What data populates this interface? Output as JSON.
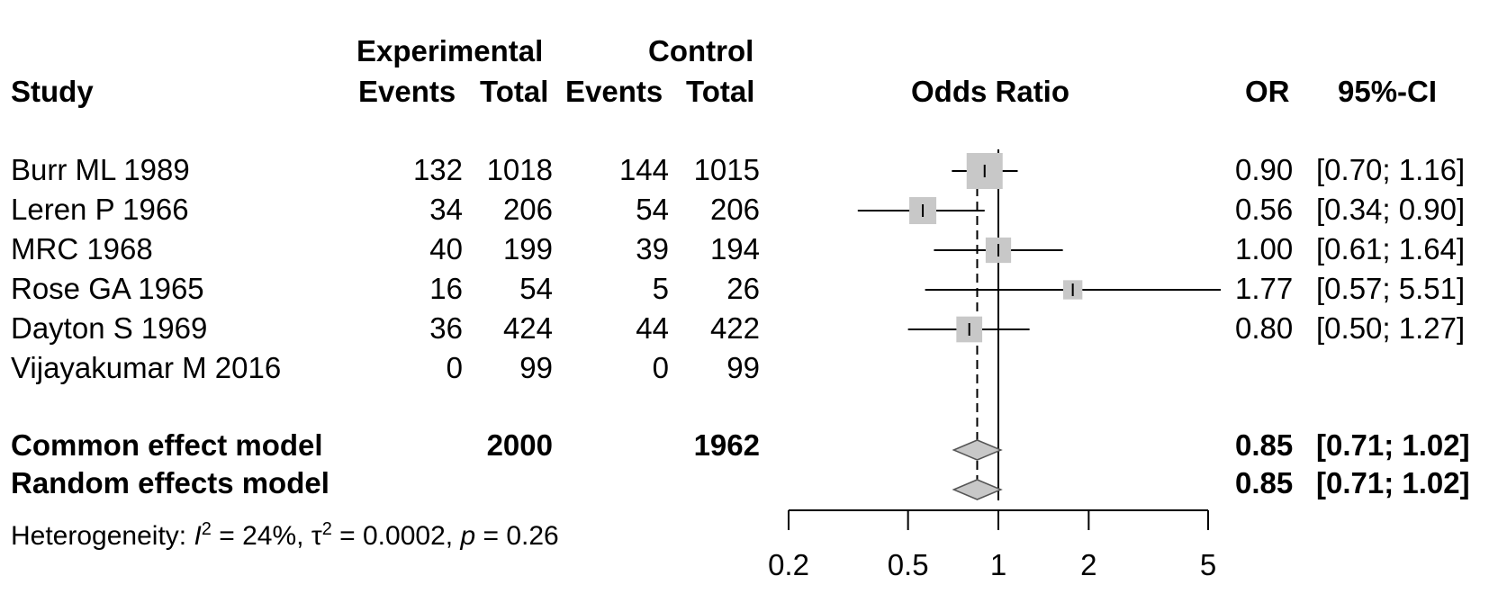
{
  "headers": {
    "study": "Study",
    "experimental": "Experimental",
    "control": "Control",
    "events": "Events",
    "total": "Total",
    "odds_ratio": "Odds Ratio",
    "or": "OR",
    "ci": "95%-CI"
  },
  "studies": [
    {
      "name": "Burr ML 1989",
      "e_events": "132",
      "e_total": "1018",
      "c_events": "144",
      "c_total": "1015",
      "or": "0.90",
      "ci": "[0.70; 1.16]"
    },
    {
      "name": "Leren P 1966",
      "e_events": "34",
      "e_total": "206",
      "c_events": "54",
      "c_total": "206",
      "or": "0.56",
      "ci": "[0.34; 0.90]"
    },
    {
      "name": "MRC 1968",
      "e_events": "40",
      "e_total": "199",
      "c_events": "39",
      "c_total": "194",
      "or": "1.00",
      "ci": "[0.61; 1.64]"
    },
    {
      "name": "Rose GA 1965",
      "e_events": "16",
      "e_total": "54",
      "c_events": "5",
      "c_total": "26",
      "or": "1.77",
      "ci": "[0.57; 5.51]"
    },
    {
      "name": "Dayton S 1969",
      "e_events": "36",
      "e_total": "424",
      "c_events": "44",
      "c_total": "422",
      "or": "0.80",
      "ci": "[0.50; 1.27]"
    },
    {
      "name": "Vijayakumar M 2016",
      "e_events": "0",
      "e_total": "99",
      "c_events": "0",
      "c_total": "99",
      "or": "",
      "ci": ""
    }
  ],
  "models": [
    {
      "name": "Common effect model",
      "e_total": "2000",
      "c_total": "1962",
      "or": "0.85",
      "ci": "[0.71; 1.02]"
    },
    {
      "name": "Random effects model",
      "e_total": "",
      "c_total": "",
      "or": "0.85",
      "ci": "[0.71; 1.02]"
    }
  ],
  "heterogeneity": {
    "prefix": "Heterogeneity: ",
    "i2_symbol": "I",
    "i2_value": " = 24%, ",
    "tau2_symbol": "τ",
    "tau2_value": " = 0.0002, ",
    "p_symbol": "p",
    "p_value": " = 0.26"
  },
  "chart_data": {
    "type": "forest",
    "xlabel": "",
    "scale": "log",
    "xlim": [
      0.2,
      5
    ],
    "ticks": [
      0.2,
      0.5,
      1,
      2,
      5
    ],
    "tick_labels": [
      "0.2",
      "0.5",
      "1",
      "2",
      "5"
    ],
    "null_value": 1,
    "pooled_line_value": 0.85,
    "box_color": "#c8c8c8",
    "diamond_color": "#c8c8c8",
    "studies": [
      {
        "name": "Burr ML 1989",
        "or": 0.9,
        "lower": 0.7,
        "upper": 1.16,
        "weight": 1.0
      },
      {
        "name": "Leren P 1966",
        "or": 0.56,
        "lower": 0.34,
        "upper": 0.9,
        "weight": 0.38
      },
      {
        "name": "MRC 1968",
        "or": 1.0,
        "lower": 0.61,
        "upper": 1.64,
        "weight": 0.3
      },
      {
        "name": "Rose GA 1965",
        "or": 1.77,
        "lower": 0.57,
        "upper": 5.51,
        "weight": 0.08
      },
      {
        "name": "Dayton S 1969",
        "or": 0.8,
        "lower": 0.5,
        "upper": 1.27,
        "weight": 0.32
      }
    ],
    "pooled": [
      {
        "name": "Common effect model",
        "or": 0.85,
        "lower": 0.71,
        "upper": 1.02
      },
      {
        "name": "Random effects model",
        "or": 0.85,
        "lower": 0.71,
        "upper": 1.02
      }
    ]
  }
}
